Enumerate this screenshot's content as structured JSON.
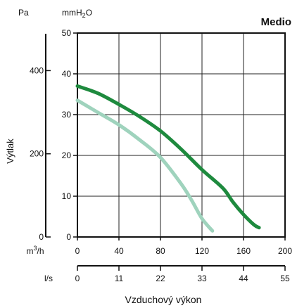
{
  "chart_data": {
    "type": "line",
    "title": "Medio",
    "xlabel": "Vzduchový výkon",
    "ylabel": "Výtlak",
    "grid": true,
    "x_axis_primary": {
      "unit_prefix": "m",
      "unit_superscript": "3",
      "unit_suffix": "/h",
      "range": [
        0,
        200
      ],
      "ticks": [
        0,
        40,
        80,
        120,
        160,
        200
      ]
    },
    "x_axis_secondary": {
      "unit": "l/s",
      "range": [
        0,
        55
      ],
      "ticks": [
        0,
        11,
        22,
        33,
        44,
        55
      ]
    },
    "y_axis_primary": {
      "unit_prefix": "mmH",
      "unit_subscript": "2",
      "unit_suffix": "O",
      "range": [
        0,
        50
      ],
      "ticks": [
        0,
        10,
        20,
        30,
        40,
        50
      ]
    },
    "y_axis_secondary": {
      "unit": "Pa",
      "ticks": [
        0,
        200,
        400
      ]
    },
    "series": [
      {
        "color": "#1e8a3e",
        "x": [
          0,
          20,
          40,
          60,
          80,
          100,
          120,
          140,
          150,
          160,
          170,
          175
        ],
        "y": [
          37,
          35.2,
          32.5,
          29.5,
          26,
          21.5,
          16.5,
          12,
          8.5,
          5.5,
          3,
          2.3
        ]
      },
      {
        "color": "#9fd3bd",
        "x": [
          0,
          20,
          40,
          60,
          80,
          100,
          110,
          120,
          130
        ],
        "y": [
          33.5,
          30.5,
          27.5,
          23.8,
          19.5,
          13,
          9,
          4.5,
          1.5
        ]
      }
    ]
  }
}
